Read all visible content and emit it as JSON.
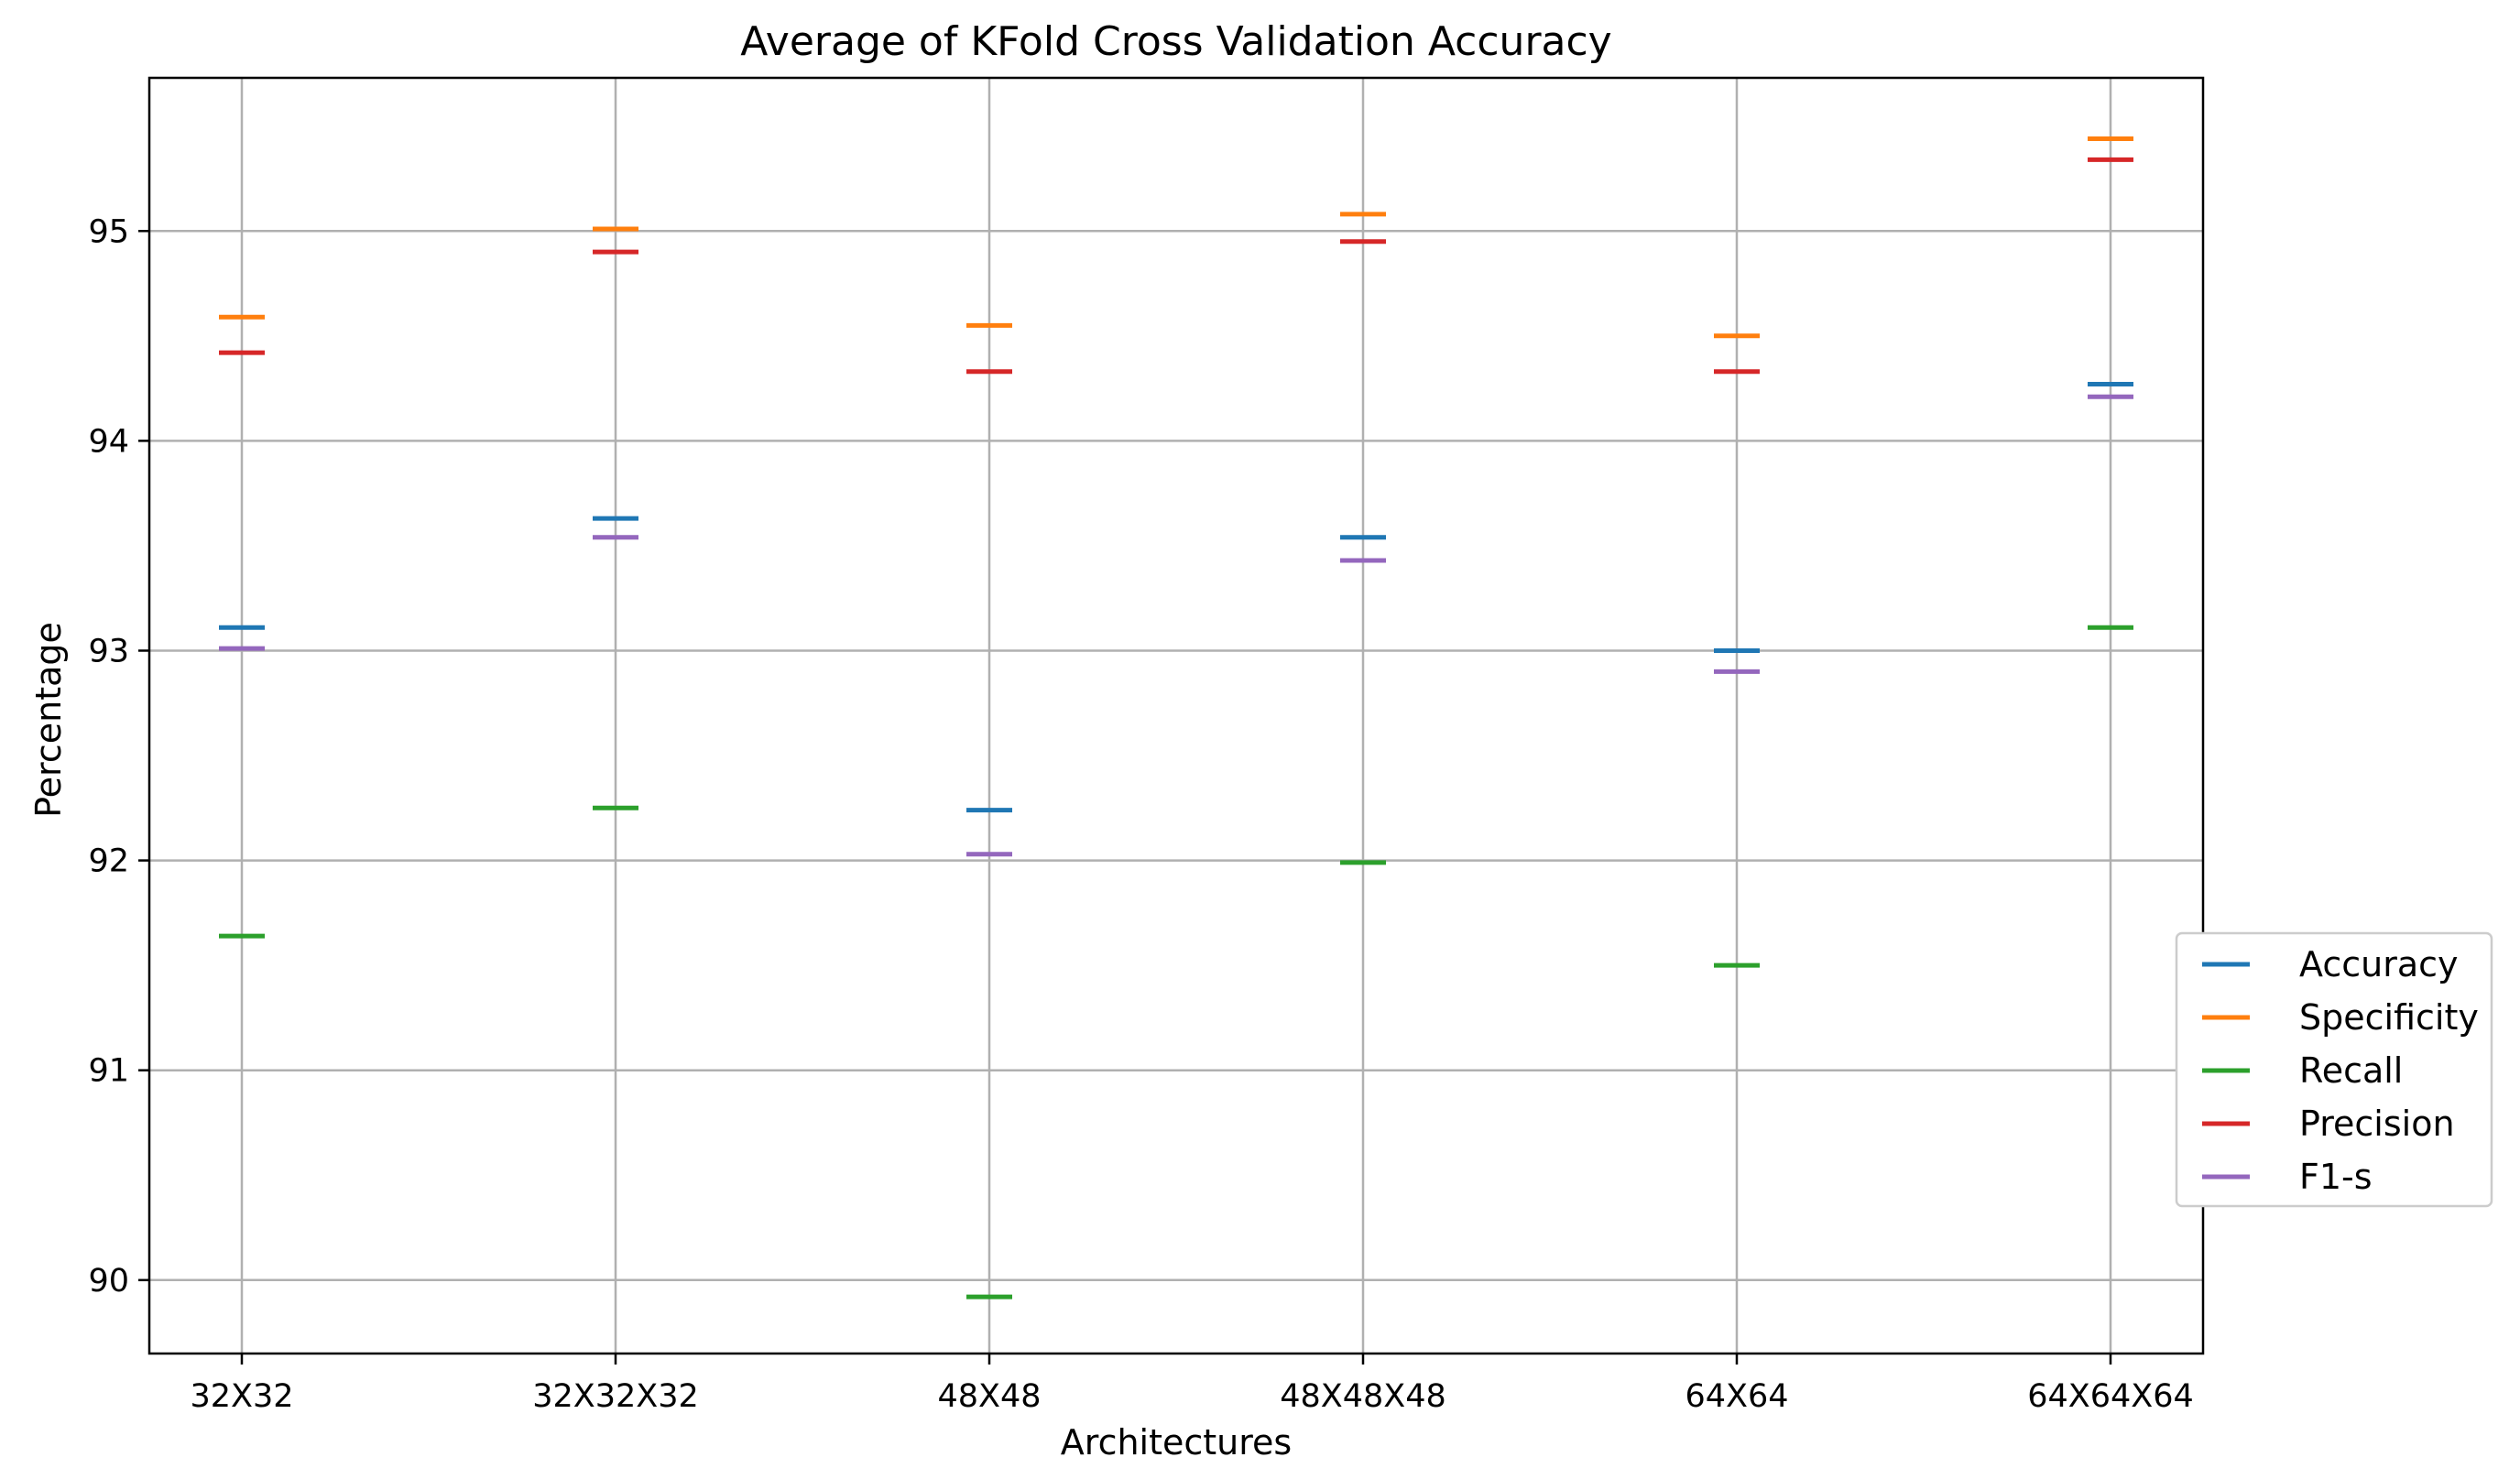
{
  "chart_data": {
    "type": "scatter",
    "title": "Average of KFold Cross Validation Accuracy",
    "xlabel": "Architectures",
    "ylabel": "Percentage",
    "categories": [
      "32X32",
      "32X32X32",
      "48X48",
      "48X48X48",
      "64X64",
      "64X64X64"
    ],
    "yticks": [
      "90",
      "91",
      "92",
      "93",
      "94",
      "95"
    ],
    "ylim": [
      89.65,
      95.73
    ],
    "grid": true,
    "marker": "horizontal-line",
    "legend_position": "right",
    "series": [
      {
        "name": "Accuracy",
        "color": "#1f77b4",
        "values": [
          93.11,
          93.63,
          92.24,
          93.54,
          93.0,
          94.27
        ]
      },
      {
        "name": "Specificity",
        "color": "#ff7f0e",
        "values": [
          94.59,
          95.01,
          94.55,
          95.08,
          94.5,
          95.44
        ]
      },
      {
        "name": "Recall",
        "color": "#2ca02c",
        "values": [
          91.64,
          92.25,
          89.92,
          91.99,
          91.5,
          93.11
        ]
      },
      {
        "name": "Precision",
        "color": "#d62728",
        "values": [
          94.42,
          94.9,
          94.33,
          94.95,
          94.33,
          95.34
        ]
      },
      {
        "name": "F1-s",
        "color": "#9467bd",
        "values": [
          93.01,
          93.54,
          92.03,
          93.43,
          92.9,
          94.21
        ]
      }
    ]
  }
}
